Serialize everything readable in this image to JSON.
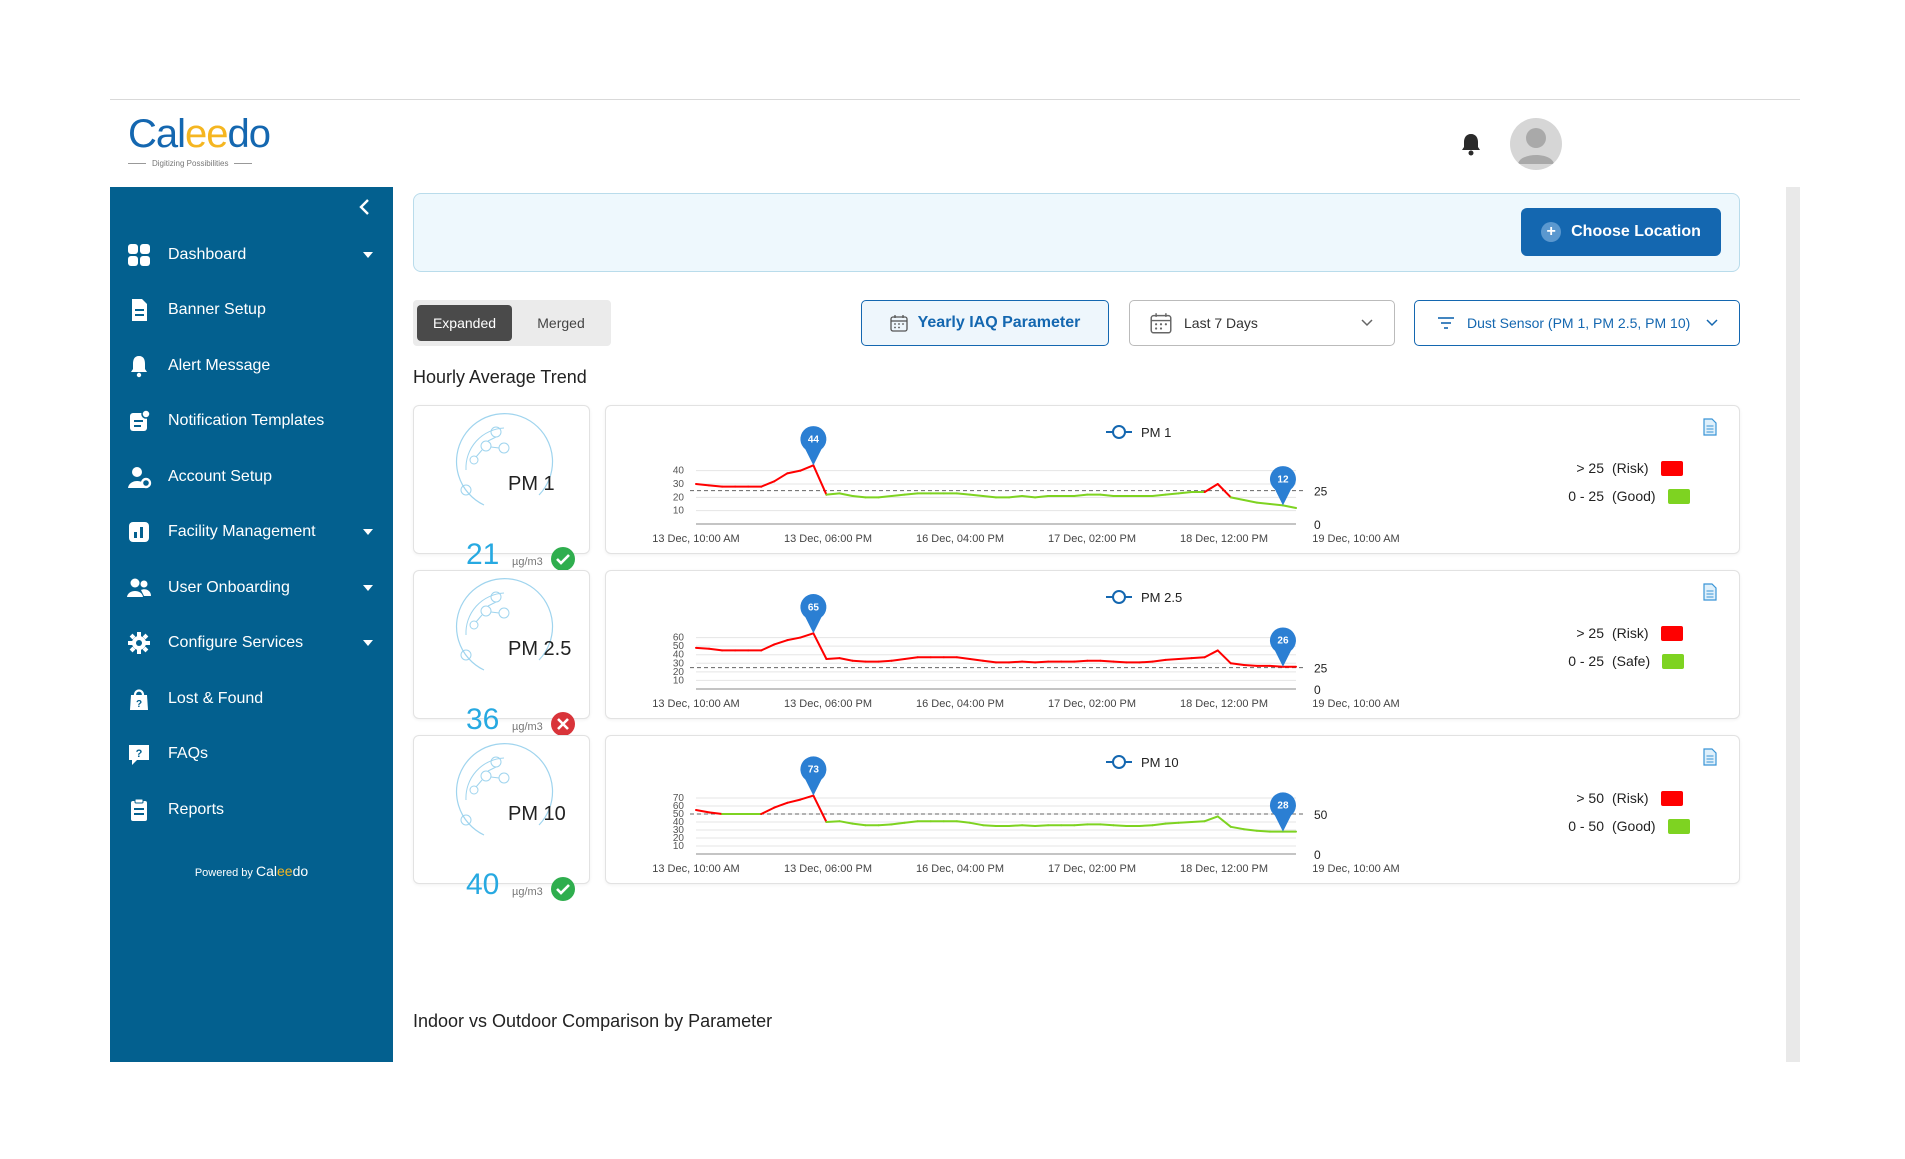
{
  "header": {
    "logo_prefix": "Cal",
    "logo_mid": "ee",
    "logo_suffix": "do",
    "logo_tagline": "Digitizing Possibilities"
  },
  "sidebar": {
    "items": [
      {
        "label": "Dashboard",
        "icon": "grid-icon",
        "caret": true
      },
      {
        "label": "Banner Setup",
        "icon": "document-icon",
        "caret": false
      },
      {
        "label": "Alert Message",
        "icon": "bell-icon",
        "caret": false
      },
      {
        "label": "Notification Templates",
        "icon": "template-icon",
        "caret": false
      },
      {
        "label": "Account Setup",
        "icon": "user-gear-icon",
        "caret": false
      },
      {
        "label": "Facility Management",
        "icon": "chart-icon",
        "caret": true
      },
      {
        "label": "User Onboarding",
        "icon": "users-icon",
        "caret": true
      },
      {
        "label": "Configure Services",
        "icon": "gear-icon",
        "caret": true
      },
      {
        "label": "Lost & Found",
        "icon": "bag-icon",
        "caret": false
      },
      {
        "label": "FAQs",
        "icon": "faq-icon",
        "caret": false
      },
      {
        "label": "Reports",
        "icon": "clipboard-icon",
        "caret": false
      }
    ],
    "powered_by": "Powered by",
    "powered_brand_a": "Cal",
    "powered_brand_b": "ee",
    "powered_brand_c": "do"
  },
  "banner": {
    "choose_location": "Choose Location"
  },
  "view_toggle": {
    "expanded": "Expanded",
    "merged": "Merged",
    "active": "Expanded"
  },
  "filters": {
    "yearly_button": "Yearly IAQ Parameter",
    "date_range": "Last 7 Days",
    "sensor": "Dust Sensor (PM 1, PM 2.5, PM 10)"
  },
  "sections": {
    "hourly_title": "Hourly Average Trend",
    "comparison_title": "Indoor vs Outdoor Comparison by Parameter"
  },
  "colors": {
    "risk": "#ff0000",
    "good": "#7ed321",
    "accent": "#1467b0",
    "sidebar": "#03608f"
  },
  "parameters": [
    {
      "name": "PM 1",
      "value": "21",
      "unit": "µg/m3",
      "status": "ok",
      "legend": [
        {
          "range": "> 25",
          "label": "(Risk)",
          "color": "#ff0000"
        },
        {
          "range": "0 - 25",
          "label": "(Good)",
          "color": "#7ed321"
        }
      ],
      "threshold": 25,
      "axis_right": [
        "25",
        "0"
      ],
      "yticks": [
        "40",
        "30",
        "20",
        "10"
      ],
      "peak_label": "44",
      "last_label": "12"
    },
    {
      "name": "PM 2.5",
      "value": "36",
      "unit": "µg/m3",
      "status": "bad",
      "legend": [
        {
          "range": "> 25",
          "label": "(Risk)",
          "color": "#ff0000"
        },
        {
          "range": "0 - 25",
          "label": "(Safe)",
          "color": "#7ed321"
        }
      ],
      "threshold": 25,
      "axis_right": [
        "25",
        "0"
      ],
      "yticks": [
        "60",
        "50",
        "40",
        "30",
        "20",
        "10"
      ],
      "peak_label": "65",
      "last_label": "26"
    },
    {
      "name": "PM 10",
      "value": "40",
      "unit": "µg/m3",
      "status": "ok",
      "legend": [
        {
          "range": "> 50",
          "label": "(Risk)",
          "color": "#ff0000"
        },
        {
          "range": "0 - 50",
          "label": "(Good)",
          "color": "#7ed321"
        }
      ],
      "threshold": 50,
      "axis_right": [
        "50",
        "0"
      ],
      "yticks": [
        "70",
        "60",
        "50",
        "40",
        "30",
        "20",
        "10"
      ],
      "peak_label": "73",
      "last_label": "28"
    }
  ],
  "chart_data": [
    {
      "type": "line",
      "series": [
        {
          "name": "PM 1",
          "values": [
            30,
            29,
            28,
            28,
            28,
            28,
            32,
            38,
            40,
            44,
            22,
            23,
            21,
            20,
            20,
            21,
            22,
            23,
            23,
            23,
            23,
            22,
            21,
            20,
            20,
            21,
            20,
            21,
            21,
            21,
            22,
            22,
            21,
            21,
            21,
            21,
            22,
            23,
            24,
            24,
            30,
            20,
            18,
            16,
            15,
            14,
            12
          ]
        }
      ],
      "x_tick_labels": [
        "13 Dec, 10:00 AM",
        "13 Dec, 06:00 PM",
        "16 Dec, 04:00 PM",
        "17 Dec, 02:00 PM",
        "18 Dec, 12:00 PM",
        "19 Dec, 10:00 AM"
      ],
      "threshold": 25,
      "ylim": [
        0,
        45
      ],
      "annotations": [
        "44",
        "12"
      ]
    },
    {
      "type": "line",
      "series": [
        {
          "name": "PM 2.5",
          "values": [
            48,
            47,
            45,
            45,
            45,
            45,
            52,
            57,
            60,
            65,
            35,
            36,
            33,
            32,
            32,
            33,
            35,
            37,
            37,
            37,
            37,
            35,
            33,
            31,
            31,
            32,
            31,
            32,
            32,
            32,
            33,
            33,
            32,
            31,
            31,
            32,
            34,
            35,
            36,
            37,
            45,
            30,
            28,
            27,
            27,
            26,
            26
          ]
        }
      ],
      "x_tick_labels": [
        "13 Dec, 10:00 AM",
        "13 Dec, 06:00 PM",
        "16 Dec, 04:00 PM",
        "17 Dec, 02:00 PM",
        "18 Dec, 12:00 PM",
        "19 Dec, 10:00 AM"
      ],
      "threshold": 25,
      "ylim": [
        0,
        70
      ],
      "annotations": [
        "65",
        "26"
      ]
    },
    {
      "type": "line",
      "series": [
        {
          "name": "PM 10",
          "values": [
            55,
            52,
            50,
            50,
            50,
            50,
            58,
            64,
            68,
            73,
            40,
            41,
            38,
            36,
            36,
            37,
            39,
            41,
            41,
            41,
            41,
            39,
            36,
            35,
            35,
            36,
            35,
            36,
            36,
            36,
            37,
            37,
            36,
            35,
            35,
            36,
            38,
            39,
            40,
            41,
            47,
            34,
            31,
            29,
            28,
            28,
            28
          ]
        }
      ],
      "x_tick_labels": [
        "13 Dec, 10:00 AM",
        "13 Dec, 06:00 PM",
        "16 Dec, 04:00 PM",
        "17 Dec, 02:00 PM",
        "18 Dec, 12:00 PM",
        "19 Dec, 10:00 AM"
      ],
      "threshold": 50,
      "ylim": [
        0,
        75
      ],
      "annotations": [
        "73",
        "28"
      ]
    }
  ]
}
